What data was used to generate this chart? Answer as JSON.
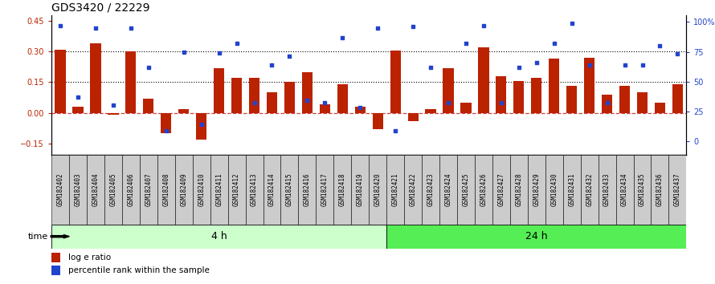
{
  "title": "GDS3420 / 22229",
  "samples": [
    "GSM182402",
    "GSM182403",
    "GSM182404",
    "GSM182405",
    "GSM182406",
    "GSM182407",
    "GSM182408",
    "GSM182409",
    "GSM182410",
    "GSM182411",
    "GSM182412",
    "GSM182413",
    "GSM182414",
    "GSM182415",
    "GSM182416",
    "GSM182417",
    "GSM182418",
    "GSM182419",
    "GSM182420",
    "GSM182421",
    "GSM182422",
    "GSM182423",
    "GSM182424",
    "GSM182425",
    "GSM182426",
    "GSM182427",
    "GSM182428",
    "GSM182429",
    "GSM182430",
    "GSM182431",
    "GSM182432",
    "GSM182433",
    "GSM182434",
    "GSM182435",
    "GSM182436",
    "GSM182437"
  ],
  "log_ratio": [
    0.31,
    0.03,
    0.34,
    -0.01,
    0.3,
    0.07,
    -0.1,
    0.02,
    -0.13,
    0.22,
    0.17,
    0.17,
    0.1,
    0.15,
    0.2,
    0.04,
    0.14,
    0.03,
    -0.08,
    0.305,
    -0.04,
    0.02,
    0.22,
    0.05,
    0.32,
    0.18,
    0.155,
    0.17,
    0.265,
    0.13,
    0.27,
    0.09,
    0.13,
    0.1,
    0.05,
    0.14
  ],
  "percentile_pct": [
    97,
    37,
    95,
    30,
    95,
    62,
    9,
    75,
    14,
    74,
    82,
    32,
    64,
    71,
    34,
    32,
    87,
    28,
    95,
    9,
    96,
    62,
    32,
    82,
    97,
    32,
    62,
    66,
    82,
    99,
    64,
    32,
    64,
    64,
    80,
    73
  ],
  "bar_color": "#bb2200",
  "dot_color": "#2244cc",
  "zero_line_color": "#cc4444",
  "left_yticks": [
    -0.15,
    0.0,
    0.15,
    0.3,
    0.45
  ],
  "right_yticks": [
    0,
    25,
    50,
    75,
    100
  ],
  "right_ytick_labels": [
    "0",
    "25",
    "50",
    "75",
    "100%"
  ],
  "ylim_left": [
    -0.205,
    0.475
  ],
  "ylim_right": [
    -11.39,
    105.3
  ],
  "group1_count": 19,
  "group1_label": "4 h",
  "group2_label": "24 h",
  "time_label": "time",
  "legend_bar_label": "log e ratio",
  "legend_dot_label": "percentile rank within the sample",
  "group1_color": "#ccffcc",
  "group2_color": "#55ee55",
  "tick_label_fontsize": 5.5,
  "title_fontsize": 10,
  "bar_width": 0.6,
  "label_bg_color": "#cccccc"
}
